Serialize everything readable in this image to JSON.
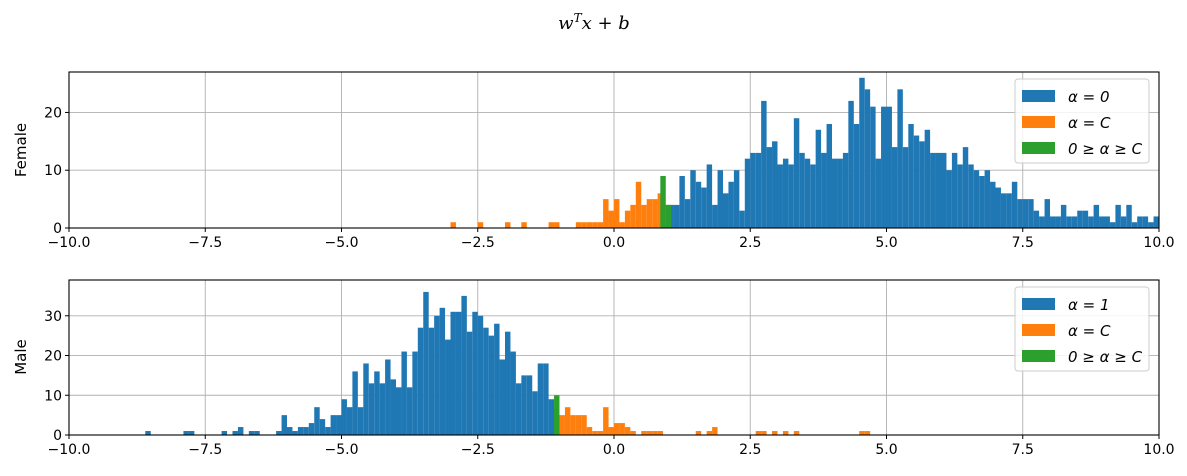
{
  "figure": {
    "title": "w^T x + b"
  },
  "chart_data": [
    {
      "type": "histogram",
      "ylabel": "Female",
      "xlim": [
        -10,
        10
      ],
      "ylim": [
        0,
        27
      ],
      "xticks": [
        "−10.0",
        "−7.5",
        "−5.0",
        "−2.5",
        "0.0",
        "2.5",
        "5.0",
        "7.5",
        "10.0"
      ],
      "yticks": [
        "0",
        "10",
        "20"
      ],
      "grid": true,
      "legend_position": "top-right",
      "series": [
        {
          "name": "α = 0",
          "color": "#1f77b4",
          "bins": [
            [
              1.0,
              4
            ],
            [
              1.1,
              4
            ],
            [
              1.2,
              9
            ],
            [
              1.3,
              5
            ],
            [
              1.4,
              10
            ],
            [
              1.5,
              8
            ],
            [
              1.6,
              7
            ],
            [
              1.7,
              11
            ],
            [
              1.8,
              4
            ],
            [
              1.9,
              10
            ],
            [
              2.0,
              6
            ],
            [
              2.1,
              8
            ],
            [
              2.2,
              10
            ],
            [
              2.3,
              3
            ],
            [
              2.4,
              12
            ],
            [
              2.5,
              13
            ],
            [
              2.6,
              13
            ],
            [
              2.7,
              22
            ],
            [
              2.8,
              14
            ],
            [
              2.9,
              15
            ],
            [
              3.0,
              11
            ],
            [
              3.1,
              12
            ],
            [
              3.2,
              11
            ],
            [
              3.3,
              19
            ],
            [
              3.4,
              13
            ],
            [
              3.5,
              12
            ],
            [
              3.6,
              11
            ],
            [
              3.7,
              17
            ],
            [
              3.8,
              13
            ],
            [
              3.9,
              18
            ],
            [
              4.0,
              12
            ],
            [
              4.1,
              12
            ],
            [
              4.2,
              13
            ],
            [
              4.3,
              22
            ],
            [
              4.4,
              18
            ],
            [
              4.5,
              26
            ],
            [
              4.6,
              24
            ],
            [
              4.7,
              21
            ],
            [
              4.8,
              12
            ],
            [
              4.9,
              21
            ],
            [
              5.0,
              21
            ],
            [
              5.1,
              14
            ],
            [
              5.2,
              24
            ],
            [
              5.3,
              14
            ],
            [
              5.4,
              18
            ],
            [
              5.5,
              16
            ],
            [
              5.6,
              15
            ],
            [
              5.7,
              17
            ],
            [
              5.8,
              13
            ],
            [
              5.9,
              13
            ],
            [
              6.0,
              13
            ],
            [
              6.1,
              10
            ],
            [
              6.2,
              13
            ],
            [
              6.3,
              11
            ],
            [
              6.4,
              14
            ],
            [
              6.5,
              11
            ],
            [
              6.6,
              10
            ],
            [
              6.7,
              9
            ],
            [
              6.8,
              10
            ],
            [
              6.9,
              8
            ],
            [
              7.0,
              7
            ],
            [
              7.1,
              6
            ],
            [
              7.2,
              6
            ],
            [
              7.3,
              8
            ],
            [
              7.4,
              5
            ],
            [
              7.5,
              5
            ],
            [
              7.6,
              5
            ],
            [
              7.7,
              3
            ],
            [
              7.8,
              2
            ],
            [
              7.9,
              5
            ],
            [
              8.0,
              2
            ],
            [
              8.1,
              2
            ],
            [
              8.2,
              4
            ],
            [
              8.3,
              2
            ],
            [
              8.4,
              2
            ],
            [
              8.5,
              3
            ],
            [
              8.6,
              3
            ],
            [
              8.7,
              2
            ],
            [
              8.8,
              4
            ],
            [
              8.9,
              2
            ],
            [
              9.0,
              2
            ],
            [
              9.1,
              1
            ],
            [
              9.2,
              4
            ],
            [
              9.3,
              2
            ],
            [
              9.4,
              4
            ],
            [
              9.5,
              1
            ],
            [
              9.6,
              2
            ],
            [
              9.7,
              2
            ],
            [
              9.8,
              1
            ],
            [
              9.9,
              2
            ]
          ]
        },
        {
          "name": "α = C",
          "color": "#ff7f0e",
          "bins": [
            [
              -3.0,
              1
            ],
            [
              -2.5,
              1
            ],
            [
              -2.0,
              1
            ],
            [
              -1.7,
              1
            ],
            [
              -1.2,
              1
            ],
            [
              -1.1,
              1
            ],
            [
              -0.7,
              1
            ],
            [
              -0.6,
              1
            ],
            [
              -0.5,
              1
            ],
            [
              -0.4,
              1
            ],
            [
              -0.3,
              1
            ],
            [
              -0.2,
              5
            ],
            [
              -0.1,
              3
            ],
            [
              0.0,
              5
            ],
            [
              0.1,
              1
            ],
            [
              0.2,
              3
            ],
            [
              0.3,
              4
            ],
            [
              0.4,
              8
            ],
            [
              0.5,
              4
            ],
            [
              0.6,
              5
            ],
            [
              0.7,
              5
            ],
            [
              0.8,
              6
            ],
            [
              0.9,
              4
            ]
          ]
        },
        {
          "name": "0 ≥ α ≥ C",
          "color": "#2ca02c",
          "bins": [
            [
              0.85,
              9
            ],
            [
              0.95,
              4
            ]
          ]
        }
      ]
    },
    {
      "type": "histogram",
      "ylabel": "Male",
      "xlim": [
        -10,
        10
      ],
      "ylim": [
        0,
        39
      ],
      "xticks": [
        "−10.0",
        "−7.5",
        "−5.0",
        "−2.5",
        "0.0",
        "2.5",
        "5.0",
        "7.5",
        "10.0"
      ],
      "yticks": [
        "0",
        "10",
        "20",
        "30"
      ],
      "grid": true,
      "legend_position": "top-right",
      "series": [
        {
          "name": "α = 1",
          "color": "#1f77b4",
          "bins": [
            [
              -8.6,
              1
            ],
            [
              -7.9,
              1
            ],
            [
              -7.8,
              1
            ],
            [
              -7.2,
              1
            ],
            [
              -7.0,
              1
            ],
            [
              -6.9,
              2
            ],
            [
              -6.7,
              1
            ],
            [
              -6.6,
              1
            ],
            [
              -6.2,
              1
            ],
            [
              -6.1,
              5
            ],
            [
              -6.0,
              2
            ],
            [
              -5.9,
              1
            ],
            [
              -5.8,
              2
            ],
            [
              -5.7,
              2
            ],
            [
              -5.6,
              3
            ],
            [
              -5.5,
              7
            ],
            [
              -5.4,
              4
            ],
            [
              -5.3,
              2
            ],
            [
              -5.2,
              5
            ],
            [
              -5.1,
              5
            ],
            [
              -5.0,
              9
            ],
            [
              -4.9,
              7
            ],
            [
              -4.8,
              16
            ],
            [
              -4.7,
              7
            ],
            [
              -4.6,
              18
            ],
            [
              -4.5,
              13
            ],
            [
              -4.4,
              16
            ],
            [
              -4.3,
              13
            ],
            [
              -4.2,
              19
            ],
            [
              -4.1,
              14
            ],
            [
              -4.0,
              12
            ],
            [
              -3.9,
              21
            ],
            [
              -3.8,
              12
            ],
            [
              -3.7,
              21
            ],
            [
              -3.6,
              27
            ],
            [
              -3.5,
              36
            ],
            [
              -3.4,
              27
            ],
            [
              -3.3,
              30
            ],
            [
              -3.2,
              32
            ],
            [
              -3.1,
              24
            ],
            [
              -3.0,
              31
            ],
            [
              -2.9,
              31
            ],
            [
              -2.8,
              35
            ],
            [
              -2.7,
              26
            ],
            [
              -2.6,
              31
            ],
            [
              -2.5,
              30
            ],
            [
              -2.4,
              27
            ],
            [
              -2.3,
              25
            ],
            [
              -2.2,
              28
            ],
            [
              -2.1,
              19
            ],
            [
              -2.0,
              26
            ],
            [
              -1.9,
              21
            ],
            [
              -1.8,
              13
            ],
            [
              -1.7,
              15
            ],
            [
              -1.6,
              15
            ],
            [
              -1.5,
              11
            ],
            [
              -1.4,
              18
            ],
            [
              -1.3,
              18
            ],
            [
              -1.2,
              9
            ],
            [
              -1.1,
              7
            ]
          ]
        },
        {
          "name": "α = C",
          "color": "#ff7f0e",
          "bins": [
            [
              -1.0,
              5
            ],
            [
              -0.9,
              7
            ],
            [
              -0.8,
              5
            ],
            [
              -0.7,
              5
            ],
            [
              -0.6,
              5
            ],
            [
              -0.5,
              2
            ],
            [
              -0.4,
              1
            ],
            [
              -0.3,
              1
            ],
            [
              -0.2,
              7
            ],
            [
              -0.1,
              2
            ],
            [
              0.0,
              3
            ],
            [
              0.1,
              3
            ],
            [
              0.2,
              2
            ],
            [
              0.3,
              1
            ],
            [
              0.5,
              1
            ],
            [
              0.6,
              1
            ],
            [
              0.7,
              1
            ],
            [
              0.8,
              1
            ],
            [
              1.5,
              1
            ],
            [
              1.7,
              1
            ],
            [
              1.8,
              2
            ],
            [
              2.6,
              1
            ],
            [
              2.7,
              1
            ],
            [
              2.9,
              1
            ],
            [
              3.1,
              1
            ],
            [
              3.3,
              1
            ],
            [
              4.5,
              1
            ],
            [
              4.6,
              1
            ]
          ]
        },
        {
          "name": "0 ≥ α ≥ C",
          "color": "#2ca02c",
          "bins": [
            [
              -1.1,
              10
            ]
          ]
        }
      ]
    }
  ]
}
